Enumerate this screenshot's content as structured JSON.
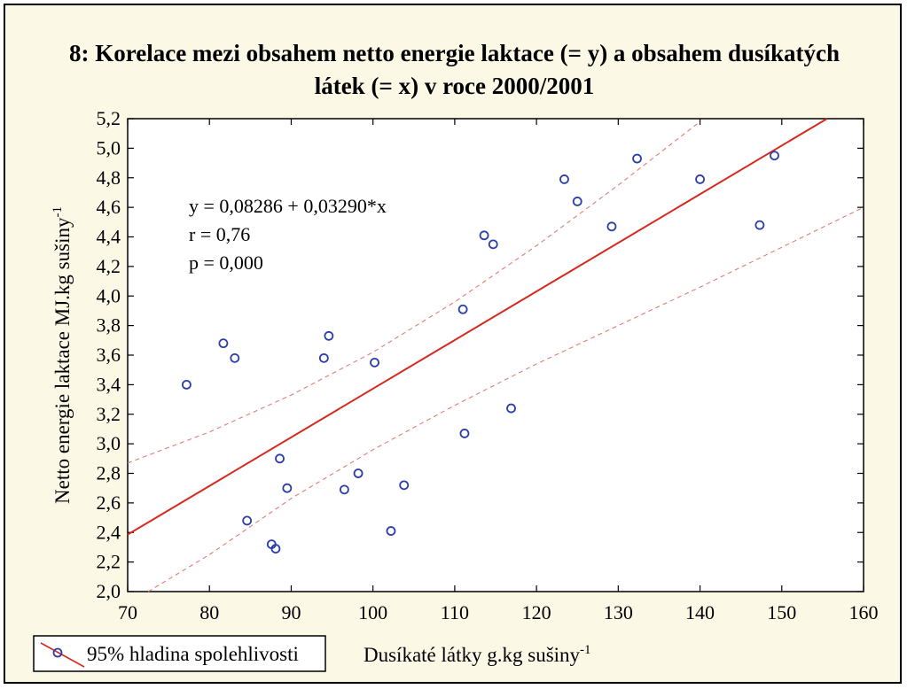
{
  "chart_data": {
    "type": "scatter",
    "title_lines": [
      "8: Korelace mezi obsahem netto energie laktace (= y) a obsahem dusíkatých",
      "látek (= x) v roce 2000/2001"
    ],
    "xlabel": {
      "text": "Dusíkaté látky g.kg sušiny",
      "sup": "-1"
    },
    "ylabel": {
      "text": "Netto energie laktace MJ.kg sušiny",
      "sup": "-1"
    },
    "xlim": [
      70,
      160
    ],
    "ylim": [
      2.0,
      5.2
    ],
    "xticks": [
      70,
      80,
      90,
      100,
      110,
      120,
      130,
      140,
      150,
      160
    ],
    "xtick_labels": [
      "70",
      "80",
      "90",
      "100",
      "110",
      "120",
      "130",
      "140",
      "150",
      "160"
    ],
    "yticks": [
      2.0,
      2.2,
      2.4,
      2.6,
      2.8,
      3.0,
      3.2,
      3.4,
      3.6,
      3.8,
      4.0,
      4.2,
      4.4,
      4.6,
      4.8,
      5.0,
      5.2
    ],
    "ytick_labels": [
      "2,0",
      "2,2",
      "2,4",
      "2,6",
      "2,8",
      "3,0",
      "3,2",
      "3,4",
      "3,6",
      "3,8",
      "4,0",
      "4,2",
      "4,4",
      "4,6",
      "4,8",
      "5,0",
      "5,2"
    ],
    "points": [
      {
        "x": 77.2,
        "y": 3.4
      },
      {
        "x": 81.7,
        "y": 3.68
      },
      {
        "x": 83.1,
        "y": 3.58
      },
      {
        "x": 84.6,
        "y": 2.48
      },
      {
        "x": 87.6,
        "y": 2.32
      },
      {
        "x": 88.1,
        "y": 2.29
      },
      {
        "x": 88.6,
        "y": 2.9
      },
      {
        "x": 89.5,
        "y": 2.7
      },
      {
        "x": 94.0,
        "y": 3.58
      },
      {
        "x": 94.6,
        "y": 3.73
      },
      {
        "x": 96.5,
        "y": 2.69
      },
      {
        "x": 98.2,
        "y": 2.8
      },
      {
        "x": 100.2,
        "y": 3.55
      },
      {
        "x": 102.2,
        "y": 2.41
      },
      {
        "x": 103.8,
        "y": 2.72
      },
      {
        "x": 111.0,
        "y": 3.91
      },
      {
        "x": 111.2,
        "y": 3.07
      },
      {
        "x": 113.6,
        "y": 4.41
      },
      {
        "x": 114.7,
        "y": 4.35
      },
      {
        "x": 116.9,
        "y": 3.24
      },
      {
        "x": 123.4,
        "y": 4.79
      },
      {
        "x": 125.0,
        "y": 4.64
      },
      {
        "x": 129.2,
        "y": 4.47
      },
      {
        "x": 132.3,
        "y": 4.93
      },
      {
        "x": 140.0,
        "y": 4.79
      },
      {
        "x": 147.3,
        "y": 4.48
      },
      {
        "x": 149.1,
        "y": 4.95
      }
    ],
    "regression": {
      "intercept": 0.08286,
      "slope": 0.0329
    },
    "confidence_band": {
      "upper": [
        [
          70,
          2.87
        ],
        [
          80,
          3.08
        ],
        [
          90,
          3.33
        ],
        [
          100,
          3.62
        ],
        [
          110,
          3.96
        ],
        [
          120,
          4.34
        ],
        [
          130,
          4.75
        ],
        [
          140,
          5.18
        ]
      ],
      "lower": [
        [
          72.5,
          2.0
        ],
        [
          80,
          2.25
        ],
        [
          90,
          2.63
        ],
        [
          100,
          2.96
        ],
        [
          110,
          3.26
        ],
        [
          120,
          3.54
        ],
        [
          130,
          3.8
        ],
        [
          140,
          4.06
        ],
        [
          150,
          4.33
        ],
        [
          160,
          4.6
        ]
      ]
    },
    "annotations": [
      "y = 0,08286 + 0,03290*x",
      "r = 0,76",
      "p = 0,000"
    ],
    "legend": {
      "label": "95% hladina spolehlivosti",
      "placement": "bottom-left"
    },
    "grid": false,
    "colors": {
      "background": "#fbf8e6",
      "plot_area": "#ffffff",
      "marker": "#2a3da8",
      "regression": "#d42a20",
      "confidence": "#e07c76"
    }
  }
}
